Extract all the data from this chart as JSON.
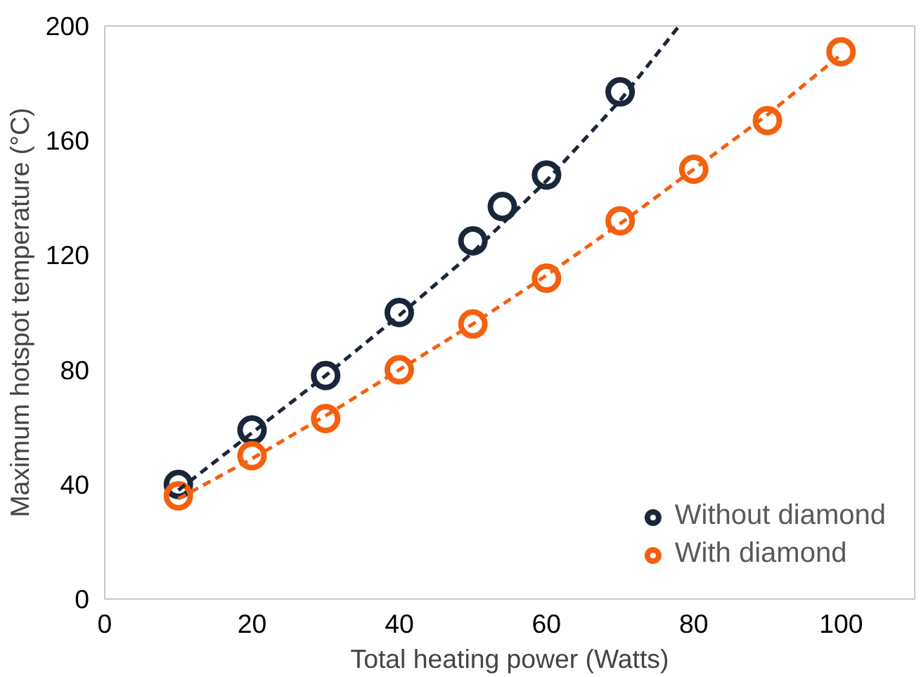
{
  "chart_data": {
    "type": "scatter",
    "xlabel": "Total heating power (Watts)",
    "ylabel": "Maximum hotspot temperature (°C)",
    "xlim": [
      0,
      110
    ],
    "ylim": [
      0,
      200
    ],
    "xticks": [
      0,
      20,
      40,
      60,
      80,
      100
    ],
    "yticks": [
      0,
      40,
      80,
      120,
      160,
      200
    ],
    "grid": false,
    "legend": "bottom right",
    "marker": "circle",
    "series": [
      {
        "name": "Without diamond",
        "color": "#1a2639",
        "x": [
          10,
          20,
          30,
          40,
          50,
          54,
          60,
          70
        ],
        "values": [
          40,
          59,
          78,
          100,
          125,
          137,
          148,
          177
        ]
      },
      {
        "name": "With diamond",
        "color": "#f4600e",
        "x": [
          10,
          20,
          30,
          40,
          50,
          60,
          70,
          80,
          90,
          100
        ],
        "values": [
          36,
          50,
          63,
          80,
          96,
          112,
          132,
          150,
          167,
          191
        ]
      },
      {
        "type": "line",
        "line_style": "dashed",
        "marker": "none",
        "color": "#1a2639",
        "x": [
          10,
          20,
          30,
          40,
          50,
          60,
          70,
          78
        ],
        "values": [
          38,
          58,
          78,
          99,
          121,
          146,
          174,
          200
        ]
      },
      {
        "type": "line",
        "line_style": "dashed",
        "marker": "none",
        "color": "#f4600e",
        "x": [
          10,
          20,
          30,
          40,
          50,
          60,
          70,
          80,
          90,
          100
        ],
        "values": [
          35,
          49,
          64,
          80,
          96,
          113,
          131,
          150,
          169,
          190
        ]
      }
    ]
  }
}
